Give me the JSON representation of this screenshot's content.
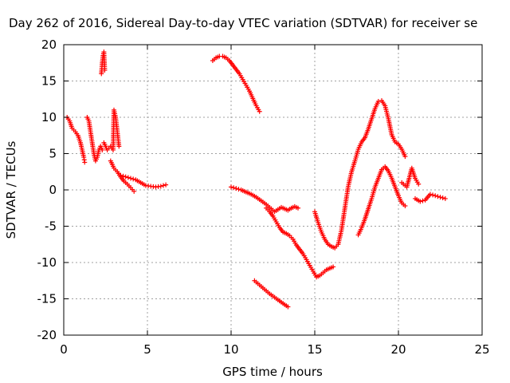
{
  "chart_data": {
    "type": "scatter",
    "title": "Day 262 of 2016, Sidereal Day-to-day VTEC variation (SDTVAR) for receiver se",
    "xlabel": "GPS time / hours",
    "ylabel": "SDTVAR / TECUs",
    "xlim": [
      0,
      25
    ],
    "ylim": [
      -20,
      20
    ],
    "x_ticks": [
      0,
      5,
      10,
      15,
      20,
      25
    ],
    "y_ticks": [
      -20,
      -15,
      -10,
      -5,
      0,
      5,
      10,
      15,
      20
    ],
    "grid": true,
    "marker": "+",
    "marker_color": "#ff0000",
    "series": [
      {
        "x": [
          0.2,
          0.35,
          0.5,
          0.7,
          0.85,
          1.0,
          1.1,
          1.2,
          1.25
        ],
        "y": [
          10,
          9.5,
          8.5,
          8.0,
          7.5,
          6.5,
          5.5,
          4.5,
          3.8
        ]
      },
      {
        "x": [
          1.4,
          1.5,
          1.6,
          1.7,
          1.8,
          1.9,
          2.0,
          2.1,
          2.2,
          2.3
        ],
        "y": [
          10,
          9.5,
          8,
          6.5,
          5,
          4,
          4.5,
          5.5,
          6,
          5.5
        ]
      },
      {
        "x": [
          2.25,
          2.3,
          2.35,
          2.4,
          2.45
        ],
        "y": [
          16,
          17.5,
          18.5,
          19,
          16.5
        ]
      },
      {
        "x": [
          2.4,
          2.6,
          2.8,
          2.95,
          3.0,
          3.1,
          3.2,
          3.3
        ],
        "y": [
          6.5,
          5.5,
          6.0,
          5.5,
          11,
          10,
          8,
          6
        ]
      },
      {
        "x": [
          2.8,
          3.0,
          3.2,
          3.4,
          3.6,
          3.8,
          4.0,
          4.2
        ],
        "y": [
          4,
          3,
          2.5,
          1.8,
          1.2,
          0.8,
          0.3,
          -0.2
        ]
      },
      {
        "x": [
          3.4,
          3.7,
          4.0,
          4.3,
          4.6,
          4.9,
          5.2,
          5.5,
          5.8,
          6.1
        ],
        "y": [
          2.0,
          1.8,
          1.6,
          1.4,
          1.0,
          0.6,
          0.5,
          0.4,
          0.5,
          0.7
        ]
      },
      {
        "x": [
          8.9,
          9.1,
          9.3,
          9.5,
          9.7,
          9.9,
          10.1,
          10.3,
          10.5,
          10.7,
          10.9,
          11.1,
          11.3,
          11.5,
          11.7
        ],
        "y": [
          17.8,
          18.2,
          18.4,
          18.4,
          18.2,
          17.8,
          17.2,
          16.6,
          16.0,
          15.2,
          14.4,
          13.6,
          12.6,
          11.6,
          10.8
        ]
      },
      {
        "x": [
          10.0,
          10.3,
          10.6,
          10.9,
          11.2,
          11.5,
          11.8,
          12.1,
          12.4,
          12.6,
          12.8,
          13.0,
          13.2,
          13.4,
          13.6,
          13.8,
          14.0
        ],
        "y": [
          0.4,
          0.2,
          0,
          -0.3,
          -0.6,
          -1.0,
          -1.5,
          -2.0,
          -2.6,
          -3.0,
          -2.7,
          -2.4,
          -2.6,
          -2.8,
          -2.5,
          -2.3,
          -2.5
        ]
      },
      {
        "x": [
          12.1,
          12.3,
          12.5,
          12.7,
          12.9,
          13.1,
          13.3,
          13.5,
          13.7,
          13.9,
          14.1,
          14.3,
          14.5,
          14.7,
          14.9,
          15.1,
          15.3,
          15.5,
          15.7,
          16.1
        ],
        "y": [
          -2.5,
          -3.0,
          -3.6,
          -4.4,
          -5.2,
          -5.8,
          -6.0,
          -6.3,
          -6.8,
          -7.6,
          -8.2,
          -8.8,
          -9.6,
          -10.4,
          -11.2,
          -12.0,
          -11.8,
          -11.4,
          -11.0,
          -10.6
        ]
      },
      {
        "x": [
          11.4,
          11.7,
          12.0,
          12.3,
          12.6,
          12.9,
          13.2,
          13.4
        ],
        "y": [
          -12.5,
          -13.1,
          -13.7,
          -14.3,
          -14.8,
          -15.3,
          -15.8,
          -16.1
        ]
      },
      {
        "x": [
          15.0,
          15.2,
          15.4,
          15.6,
          15.8,
          16.0,
          16.2,
          16.4,
          16.6,
          16.8,
          17.0,
          17.2,
          17.4,
          17.6,
          17.8,
          18.0,
          18.2,
          18.4,
          18.6,
          18.8,
          19.0,
          19.2,
          19.4,
          19.6,
          19.8,
          20.0,
          20.2,
          20.4
        ],
        "y": [
          -3,
          -4.5,
          -5.8,
          -6.8,
          -7.5,
          -7.8,
          -8.0,
          -7.5,
          -5.5,
          -2.5,
          0.5,
          2.5,
          4.0,
          5.6,
          6.6,
          7.2,
          8.4,
          9.8,
          11.2,
          12.2,
          12.3,
          11.6,
          9.8,
          7.6,
          6.6,
          6.3,
          5.6,
          4.6
        ]
      },
      {
        "x": [
          17.6,
          17.8,
          18.0,
          18.2,
          18.4,
          18.6,
          18.8,
          19.0,
          19.2,
          19.4,
          19.6,
          19.8,
          20.0,
          20.2,
          20.4
        ],
        "y": [
          -6.2,
          -5.2,
          -4.0,
          -2.6,
          -1.2,
          0.4,
          1.6,
          2.8,
          3.2,
          2.6,
          1.6,
          0.4,
          -0.8,
          -1.8,
          -2.2
        ]
      },
      {
        "x": [
          20.2,
          20.5,
          20.8,
          21.0,
          21.2
        ],
        "y": [
          1.0,
          0.4,
          3.0,
          1.6,
          0.8
        ]
      },
      {
        "x": [
          21.0,
          21.3,
          21.6,
          21.9,
          22.2,
          22.5,
          22.8
        ],
        "y": [
          -1.2,
          -1.6,
          -1.4,
          -0.6,
          -0.8,
          -1.0,
          -1.2
        ]
      }
    ]
  }
}
